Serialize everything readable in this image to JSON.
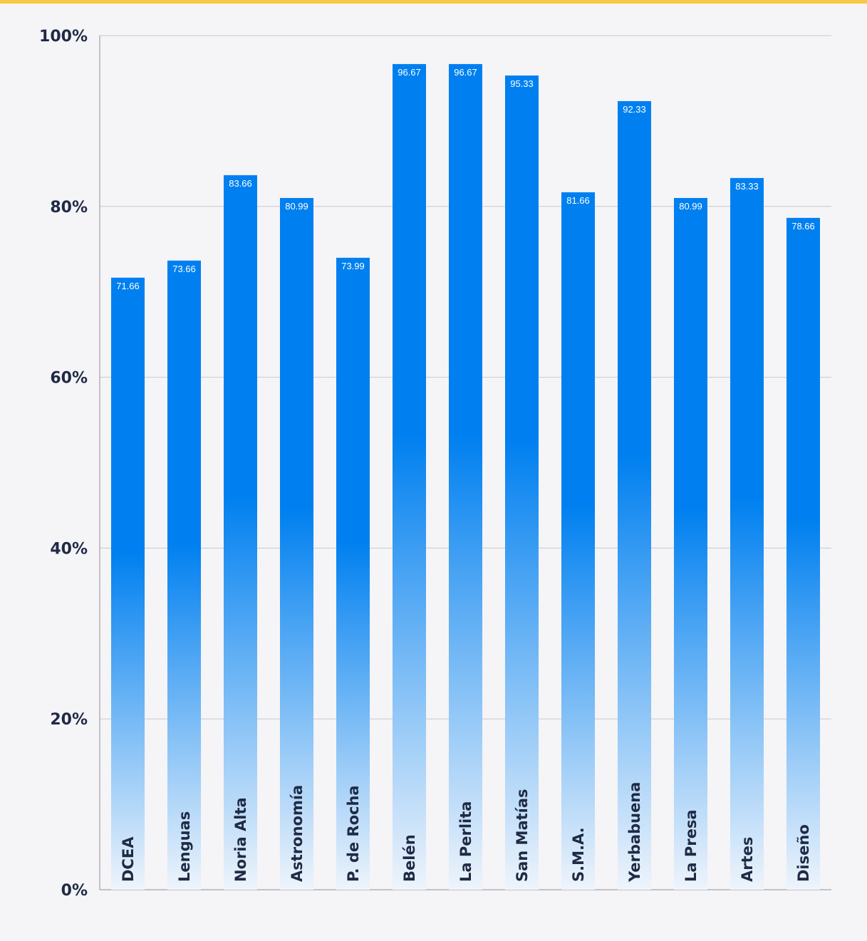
{
  "colors": {
    "bar_top": "#0080f0",
    "bar_bottom": "#eef4fb",
    "grid": "#c9c9cf",
    "axis": "#8f8f98",
    "text": "#1f2a44",
    "accent_bar": "#f7c845",
    "background": "#f5f4f7"
  },
  "chart_data": {
    "type": "bar",
    "title": "",
    "xlabel": "",
    "ylabel": "",
    "ylim": [
      0,
      100
    ],
    "yticks": [
      0,
      20,
      40,
      60,
      80,
      100
    ],
    "ytick_labels": [
      "0%",
      "20%",
      "40%",
      "60%",
      "80%",
      "100%"
    ],
    "grid": true,
    "categories": [
      "DCEA",
      "Lenguas",
      "Noria Alta",
      "Astronomía",
      "P. de Rocha",
      "Belén",
      "La Perlita",
      "San Matías",
      "S.M.A.",
      "Yerbabuena",
      "La Presa",
      "Artes",
      "Diseño"
    ],
    "values": [
      71.66,
      73.66,
      83.66,
      80.99,
      73.99,
      96.67,
      96.67,
      95.33,
      81.66,
      92.33,
      80.99,
      83.33,
      78.66
    ],
    "value_labels": [
      "71.66",
      "73.66",
      "83.66",
      "80.99",
      "73.99",
      "96.67",
      "96.67",
      "95.33",
      "81.66",
      "92.33",
      "80.99",
      "83.33",
      "78.66"
    ]
  }
}
